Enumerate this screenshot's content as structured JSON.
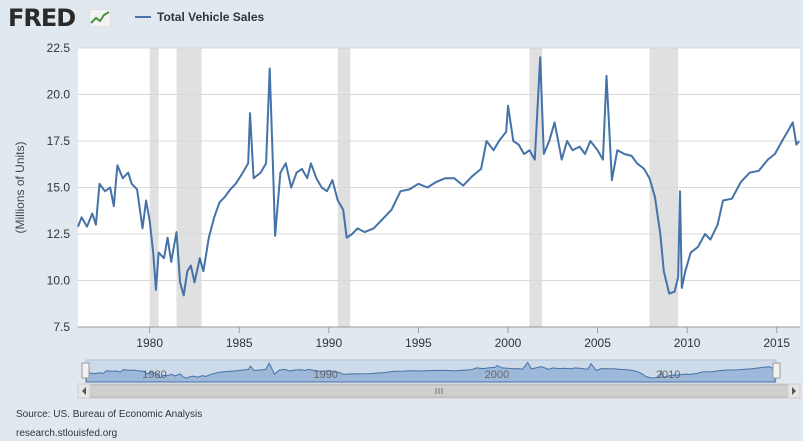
{
  "header": {
    "logo_text": "FRED",
    "logo_icon": "trend-graph-icon"
  },
  "colors": {
    "series": "#4572a7",
    "recession": "#e0e0e0",
    "background": "#e1e9f0",
    "plot_bg": "#ffffff",
    "grid": "#d8d8d8"
  },
  "chart_data": {
    "type": "line",
    "ylabel": "(Millions of Units)",
    "ylim": [
      7.5,
      22.5
    ],
    "yticks": [
      "7.5",
      "10.0",
      "12.5",
      "15.0",
      "17.5",
      "20.0",
      "22.5"
    ],
    "xlim": [
      1976.0,
      2016.3
    ],
    "xticks": [
      "1980",
      "1985",
      "1990",
      "1995",
      "2000",
      "2005",
      "2010",
      "2015"
    ],
    "legend_position": "top-left",
    "grid": true,
    "recessions": [
      [
        1980.0,
        1980.5
      ],
      [
        1981.5,
        1982.9
      ],
      [
        1990.5,
        1991.2
      ],
      [
        2001.2,
        2001.9
      ],
      [
        2007.9,
        2009.5
      ]
    ],
    "series": [
      {
        "name": "Total Vehicle Sales",
        "points": [
          [
            1976.0,
            12.9
          ],
          [
            1976.2,
            13.4
          ],
          [
            1976.5,
            12.9
          ],
          [
            1976.8,
            13.6
          ],
          [
            1977.0,
            13.0
          ],
          [
            1977.2,
            15.2
          ],
          [
            1977.5,
            14.8
          ],
          [
            1977.8,
            15.0
          ],
          [
            1978.0,
            14.0
          ],
          [
            1978.2,
            16.2
          ],
          [
            1978.5,
            15.5
          ],
          [
            1978.8,
            15.8
          ],
          [
            1979.0,
            15.2
          ],
          [
            1979.3,
            14.9
          ],
          [
            1979.6,
            12.8
          ],
          [
            1979.8,
            14.3
          ],
          [
            1980.0,
            13.2
          ],
          [
            1980.2,
            11.5
          ],
          [
            1980.35,
            9.5
          ],
          [
            1980.5,
            11.5
          ],
          [
            1980.8,
            11.2
          ],
          [
            1981.0,
            12.3
          ],
          [
            1981.2,
            11.0
          ],
          [
            1981.5,
            12.6
          ],
          [
            1981.7,
            9.9
          ],
          [
            1981.9,
            9.2
          ],
          [
            1982.1,
            10.5
          ],
          [
            1982.3,
            10.8
          ],
          [
            1982.5,
            9.9
          ],
          [
            1982.8,
            11.2
          ],
          [
            1983.0,
            10.5
          ],
          [
            1983.3,
            12.3
          ],
          [
            1983.6,
            13.4
          ],
          [
            1983.9,
            14.2
          ],
          [
            1984.2,
            14.5
          ],
          [
            1984.5,
            14.9
          ],
          [
            1984.8,
            15.2
          ],
          [
            1985.2,
            15.8
          ],
          [
            1985.5,
            16.3
          ],
          [
            1985.6,
            19.0
          ],
          [
            1985.8,
            15.5
          ],
          [
            1986.2,
            15.8
          ],
          [
            1986.5,
            16.3
          ],
          [
            1986.7,
            21.4
          ],
          [
            1986.9,
            15.6
          ],
          [
            1987.0,
            12.4
          ],
          [
            1987.3,
            15.8
          ],
          [
            1987.6,
            16.3
          ],
          [
            1987.9,
            15.0
          ],
          [
            1988.2,
            15.8
          ],
          [
            1988.5,
            16.0
          ],
          [
            1988.8,
            15.5
          ],
          [
            1989.0,
            16.3
          ],
          [
            1989.3,
            15.5
          ],
          [
            1989.6,
            15.0
          ],
          [
            1989.9,
            14.8
          ],
          [
            1990.2,
            15.4
          ],
          [
            1990.5,
            14.3
          ],
          [
            1990.8,
            13.8
          ],
          [
            1991.0,
            12.3
          ],
          [
            1991.3,
            12.5
          ],
          [
            1991.6,
            12.8
          ],
          [
            1992.0,
            12.6
          ],
          [
            1992.5,
            12.8
          ],
          [
            1993.0,
            13.3
          ],
          [
            1993.5,
            13.8
          ],
          [
            1994.0,
            14.8
          ],
          [
            1994.5,
            14.9
          ],
          [
            1995.0,
            15.2
          ],
          [
            1995.5,
            15.0
          ],
          [
            1996.0,
            15.3
          ],
          [
            1996.5,
            15.5
          ],
          [
            1997.0,
            15.5
          ],
          [
            1997.5,
            15.1
          ],
          [
            1998.0,
            15.6
          ],
          [
            1998.5,
            16.0
          ],
          [
            1998.8,
            17.5
          ],
          [
            1999.2,
            17.0
          ],
          [
            1999.5,
            17.5
          ],
          [
            1999.9,
            18.0
          ],
          [
            2000.0,
            19.4
          ],
          [
            2000.3,
            17.5
          ],
          [
            2000.6,
            17.3
          ],
          [
            2000.9,
            16.8
          ],
          [
            2001.2,
            17.0
          ],
          [
            2001.5,
            16.5
          ],
          [
            2001.8,
            22.0
          ],
          [
            2002.0,
            16.8
          ],
          [
            2002.3,
            17.5
          ],
          [
            2002.6,
            18.5
          ],
          [
            2003.0,
            16.5
          ],
          [
            2003.3,
            17.5
          ],
          [
            2003.6,
            17.0
          ],
          [
            2004.0,
            17.2
          ],
          [
            2004.3,
            16.8
          ],
          [
            2004.6,
            17.5
          ],
          [
            2005.0,
            17.0
          ],
          [
            2005.3,
            16.5
          ],
          [
            2005.5,
            21.0
          ],
          [
            2005.8,
            15.4
          ],
          [
            2006.1,
            17.0
          ],
          [
            2006.5,
            16.8
          ],
          [
            2006.9,
            16.7
          ],
          [
            2007.2,
            16.3
          ],
          [
            2007.6,
            16.0
          ],
          [
            2007.9,
            15.5
          ],
          [
            2008.2,
            14.5
          ],
          [
            2008.5,
            12.5
          ],
          [
            2008.7,
            10.5
          ],
          [
            2009.0,
            9.3
          ],
          [
            2009.3,
            9.4
          ],
          [
            2009.5,
            10.2
          ],
          [
            2009.6,
            14.8
          ],
          [
            2009.7,
            9.6
          ],
          [
            2009.9,
            10.5
          ],
          [
            2010.2,
            11.5
          ],
          [
            2010.6,
            11.8
          ],
          [
            2011.0,
            12.5
          ],
          [
            2011.3,
            12.2
          ],
          [
            2011.7,
            13.0
          ],
          [
            2012.0,
            14.3
          ],
          [
            2012.5,
            14.4
          ],
          [
            2013.0,
            15.3
          ],
          [
            2013.5,
            15.8
          ],
          [
            2014.0,
            15.9
          ],
          [
            2014.5,
            16.5
          ],
          [
            2014.9,
            16.8
          ],
          [
            2015.3,
            17.5
          ],
          [
            2015.6,
            18.0
          ],
          [
            2015.9,
            18.5
          ],
          [
            2016.1,
            17.3
          ],
          [
            2016.25,
            17.5
          ]
        ]
      }
    ]
  },
  "navigator": {
    "labels": [
      "1980",
      "1990",
      "2000",
      "2010"
    ]
  },
  "footer": {
    "source": "Source: US. Bureau of Economic Analysis",
    "site": "research.stlouisfed.org"
  }
}
